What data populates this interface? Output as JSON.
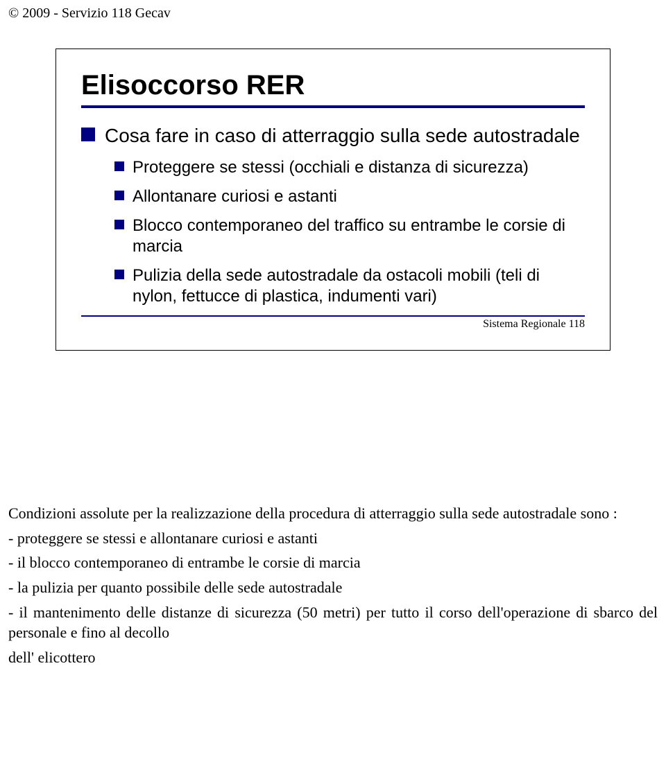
{
  "colors": {
    "navy": "#000080",
    "black": "#000000",
    "white": "#ffffff"
  },
  "header": "© 2009 - Servizio 118 Gecav",
  "slide": {
    "title": "Elisoccorso RER",
    "underline_color": "#000080",
    "section_bullet_color": "#000080",
    "sub_bullet_color": "#000080",
    "section_text": "Cosa fare in caso di atterraggio sulla sede autostradale",
    "items": [
      "Proteggere se stessi (occhiali e distanza di sicurezza)",
      "Allontanare curiosi e astanti",
      "Blocco contemporaneo del traffico su entrambe le corsie di marcia",
      "Pulizia della sede autostradale da ostacoli mobili (teli di nylon, fettucce di plastica, indumenti vari)"
    ],
    "footer_line_color": "#000080",
    "footer_text": "Sistema Regionale 118"
  },
  "body": {
    "lead": "Condizioni assolute per la realizzazione della procedura di atterraggio sulla sede autostradale sono :",
    "lines": [
      "- proteggere se stessi e allontanare curiosi e astanti",
      "- il blocco contemporaneo di entrambe le corsie di marcia",
      "- la pulizia per quanto possibile delle sede autostradale",
      "- il mantenimento delle distanze di sicurezza (50 metri) per tutto il corso dell'operazione di sbarco del personale e fino al decollo",
      "dell' elicottero"
    ]
  }
}
